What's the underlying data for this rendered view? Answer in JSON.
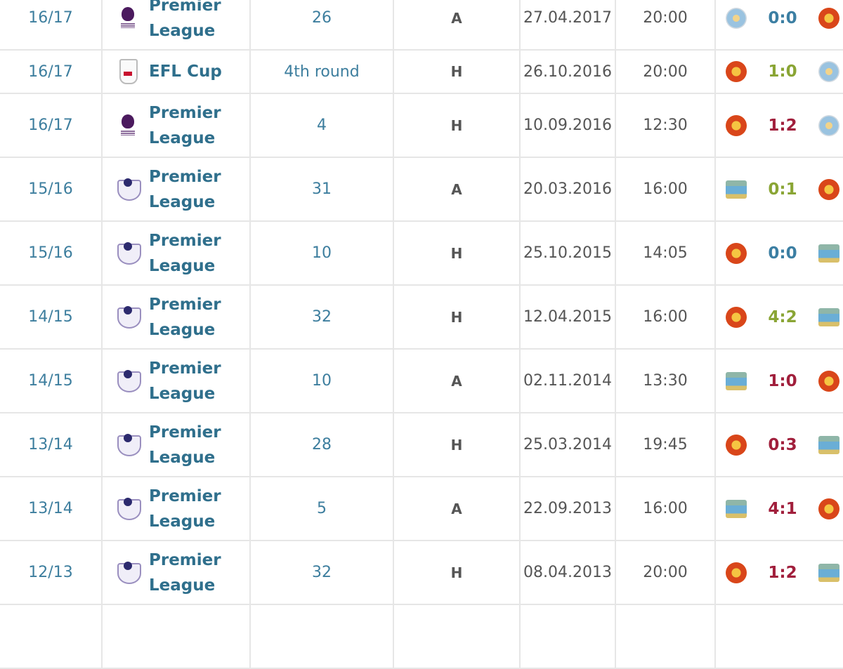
{
  "colors": {
    "draw": "#3c7fa3",
    "win": "#8aa535",
    "loss": "#a11f3c"
  },
  "matches": [
    {
      "season": "16/17",
      "competition": "Premier League",
      "comp_icon": "premier-league-new-logo",
      "round": "26",
      "venue": "A",
      "date": "27.04.2017",
      "time": "20:00",
      "home_crest": "man-city-new-crest",
      "away_crest": "man-utd-crest",
      "score": "0:0",
      "result": "draw"
    },
    {
      "season": "16/17",
      "competition": "EFL Cup",
      "comp_icon": "efl-cup-logo",
      "round": "4th round",
      "venue": "H",
      "date": "26.10.2016",
      "time": "20:00",
      "home_crest": "man-utd-crest",
      "away_crest": "man-city-new-crest",
      "score": "1:0",
      "result": "win"
    },
    {
      "season": "16/17",
      "competition": "Premier League",
      "comp_icon": "premier-league-new-logo",
      "round": "4",
      "venue": "H",
      "date": "10.09.2016",
      "time": "12:30",
      "home_crest": "man-utd-crest",
      "away_crest": "man-city-new-crest",
      "score": "1:2",
      "result": "loss"
    },
    {
      "season": "15/16",
      "competition": "Premier League",
      "comp_icon": "premier-league-old-logo",
      "round": "31",
      "venue": "A",
      "date": "20.03.2016",
      "time": "16:00",
      "home_crest": "man-city-old-crest",
      "away_crest": "man-utd-crest",
      "score": "0:1",
      "result": "win"
    },
    {
      "season": "15/16",
      "competition": "Premier League",
      "comp_icon": "premier-league-old-logo",
      "round": "10",
      "venue": "H",
      "date": "25.10.2015",
      "time": "14:05",
      "home_crest": "man-utd-crest",
      "away_crest": "man-city-old-crest",
      "score": "0:0",
      "result": "draw"
    },
    {
      "season": "14/15",
      "competition": "Premier League",
      "comp_icon": "premier-league-old-logo",
      "round": "32",
      "venue": "H",
      "date": "12.04.2015",
      "time": "16:00",
      "home_crest": "man-utd-crest",
      "away_crest": "man-city-old-crest",
      "score": "4:2",
      "result": "win"
    },
    {
      "season": "14/15",
      "competition": "Premier League",
      "comp_icon": "premier-league-old-logo",
      "round": "10",
      "venue": "A",
      "date": "02.11.2014",
      "time": "13:30",
      "home_crest": "man-city-old-crest",
      "away_crest": "man-utd-crest",
      "score": "1:0",
      "result": "loss"
    },
    {
      "season": "13/14",
      "competition": "Premier League",
      "comp_icon": "premier-league-old-logo",
      "round": "28",
      "venue": "H",
      "date": "25.03.2014",
      "time": "19:45",
      "home_crest": "man-utd-crest",
      "away_crest": "man-city-old-crest",
      "score": "0:3",
      "result": "loss"
    },
    {
      "season": "13/14",
      "competition": "Premier League",
      "comp_icon": "premier-league-old-logo",
      "round": "5",
      "venue": "A",
      "date": "22.09.2013",
      "time": "16:00",
      "home_crest": "man-city-old-crest",
      "away_crest": "man-utd-crest",
      "score": "4:1",
      "result": "loss"
    },
    {
      "season": "12/13",
      "competition": "Premier League",
      "comp_icon": "premier-league-old-logo",
      "round": "32",
      "venue": "H",
      "date": "08.04.2013",
      "time": "20:00",
      "home_crest": "man-utd-crest",
      "away_crest": "man-city-old-crest",
      "score": "1:2",
      "result": "loss"
    }
  ]
}
